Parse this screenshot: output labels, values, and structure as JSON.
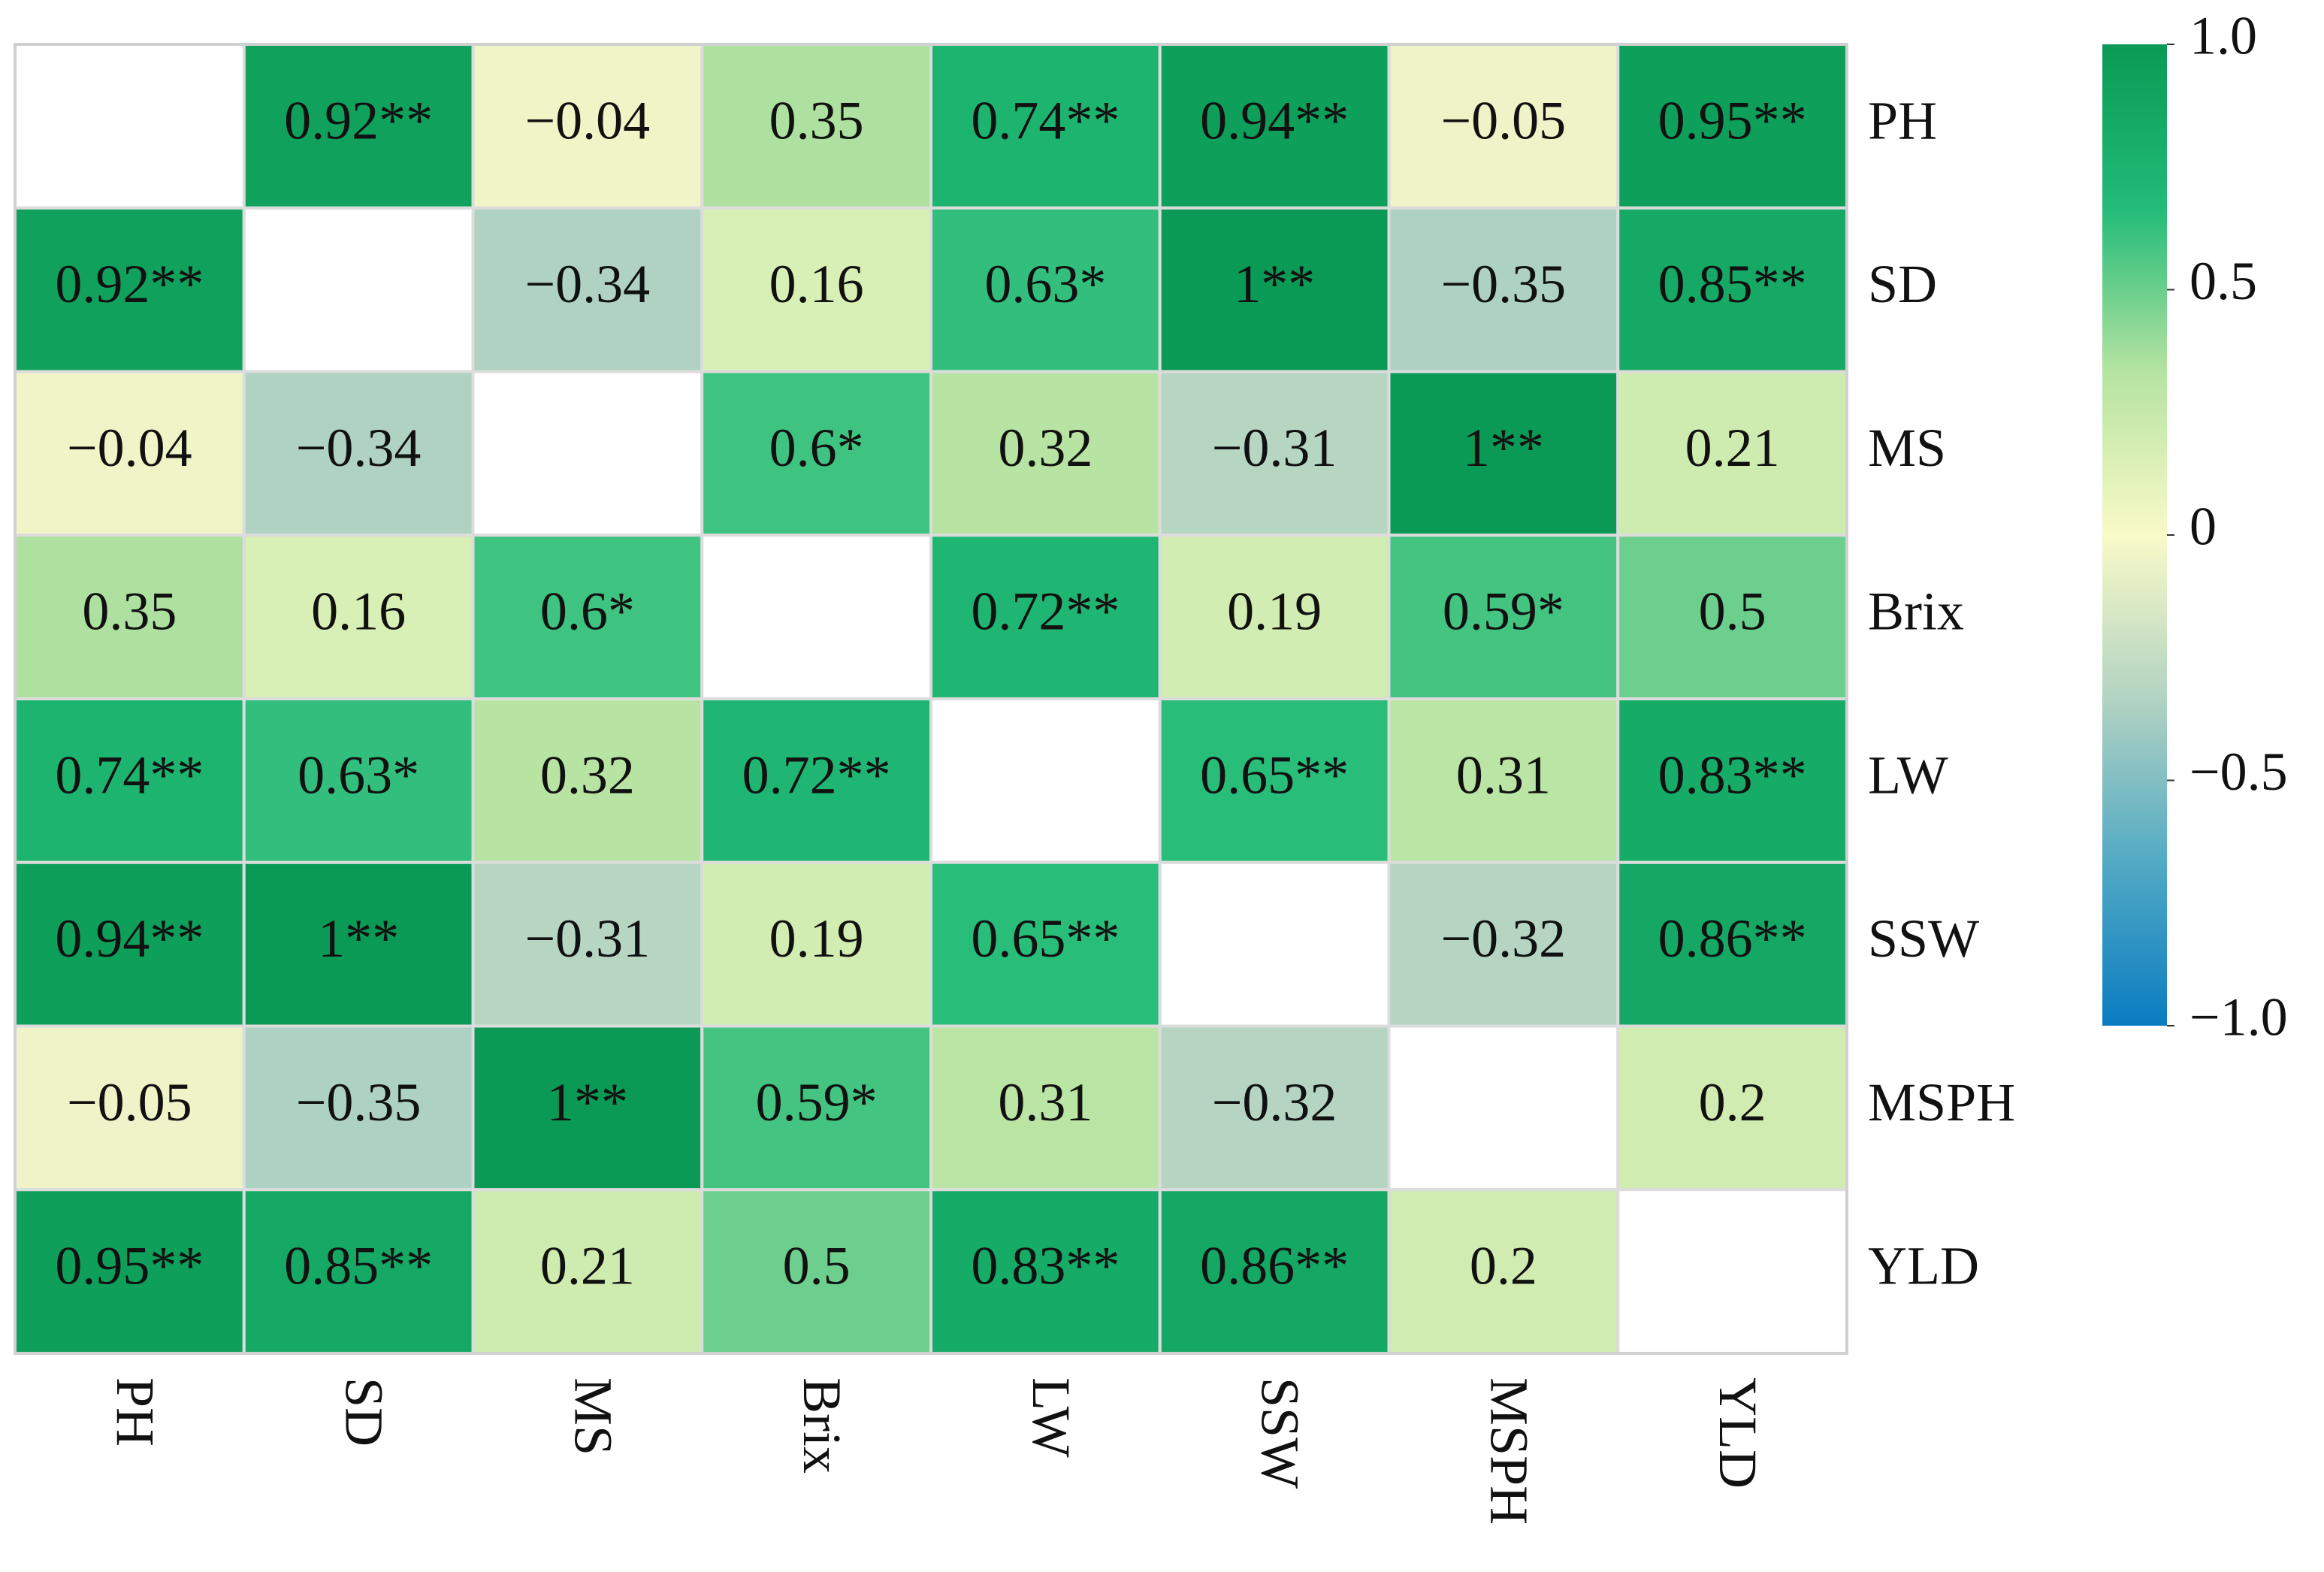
{
  "chart_data": {
    "type": "heatmap",
    "x_categories": [
      "PH",
      "SD",
      "MS",
      "Brix",
      "LW",
      "SSW",
      "MSPH",
      "YLD"
    ],
    "y_categories": [
      "PH",
      "SD",
      "MS",
      "Brix",
      "LW",
      "SSW",
      "MSPH",
      "YLD"
    ],
    "values": [
      [
        null,
        0.92,
        -0.04,
        0.35,
        0.74,
        0.94,
        -0.05,
        0.95
      ],
      [
        0.92,
        null,
        -0.34,
        0.16,
        0.63,
        1,
        -0.35,
        0.85
      ],
      [
        -0.04,
        -0.34,
        null,
        0.6,
        0.32,
        -0.31,
        1,
        0.21
      ],
      [
        0.35,
        0.16,
        0.6,
        null,
        0.72,
        0.19,
        0.59,
        0.5
      ],
      [
        0.74,
        0.63,
        0.32,
        0.72,
        null,
        0.65,
        0.31,
        0.83
      ],
      [
        0.94,
        1,
        -0.31,
        0.19,
        0.65,
        null,
        -0.32,
        0.86
      ],
      [
        -0.05,
        -0.35,
        1,
        0.59,
        0.31,
        -0.32,
        null,
        0.2
      ],
      [
        0.95,
        0.85,
        0.21,
        0.5,
        0.83,
        0.86,
        0.2,
        null
      ]
    ],
    "value_labels": [
      [
        null,
        "0.92**",
        "−0.04",
        "0.35",
        "0.74**",
        "0.94**",
        "−0.05",
        "0.95**"
      ],
      [
        "0.92**",
        null,
        "−0.34",
        "0.16",
        "0.63*",
        "1**",
        "−0.35",
        "0.85**"
      ],
      [
        "−0.04",
        "−0.34",
        null,
        "0.6*",
        "0.32",
        "−0.31",
        "1**",
        "0.21"
      ],
      [
        "0.35",
        "0.16",
        "0.6*",
        null,
        "0.72**",
        "0.19",
        "0.59*",
        "0.5"
      ],
      [
        "0.74**",
        "0.63*",
        "0.32",
        "0.72**",
        null,
        "0.65**",
        "0.31",
        "0.83**"
      ],
      [
        "0.94**",
        "1**",
        "−0.31",
        "0.19",
        "0.65**",
        null,
        "−0.32",
        "0.86**"
      ],
      [
        "−0.05",
        "−0.35",
        "1**",
        "0.59*",
        "0.31",
        "−0.32",
        null,
        "0.2"
      ],
      [
        "0.95**",
        "0.85**",
        "0.21",
        "0.5",
        "0.83**",
        "0.86**",
        "0.2",
        null
      ]
    ],
    "zlim": [
      -1,
      1
    ],
    "zticks": [
      {
        "value": 1,
        "label": "1.0"
      },
      0.5,
      0,
      {
        "value": -0.5,
        "label": "−0.5"
      },
      {
        "value": -1,
        "label": "−1.0"
      }
    ],
    "colors": [
      "#0a7cc1",
      "#52aac4",
      "#b2d3c2",
      "#f9fac8",
      "#b5e3a1",
      "#22bb78",
      "#0a9a55"
    ]
  }
}
